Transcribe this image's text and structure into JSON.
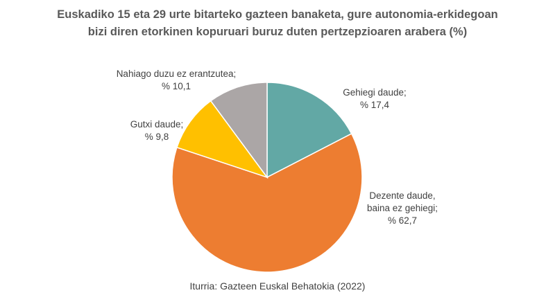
{
  "chart_data": {
    "type": "pie",
    "title": [
      "Euskadiko  15 eta 29 urte bitarteko gazteen banaketa, gure autonomia-erkidegoan",
      "bizi diren etorkinen kopuruari  buruz duten pertzepzioaren arabera (%)"
    ],
    "slices": [
      {
        "label": [
          "Gehiegi daude;"
        ],
        "value": 17.4,
        "value_label": "% 17,4",
        "color": "#62A8A5"
      },
      {
        "label": [
          "Dezente daude,",
          "baina ez gehiegi;"
        ],
        "value": 62.7,
        "value_label": "% 62,7",
        "color": "#ED7D31"
      },
      {
        "label": [
          "Gutxi daude;"
        ],
        "value": 9.8,
        "value_label": "% 9,8",
        "color": "#FFC000"
      },
      {
        "label": [
          "Nahiago duzu ez erantzutea;"
        ],
        "value": 10.1,
        "value_label": "% 10,1",
        "color": "#ABA6A6"
      }
    ],
    "source": "Iturria: Gazteen Euskal Behatokia (2022)"
  }
}
